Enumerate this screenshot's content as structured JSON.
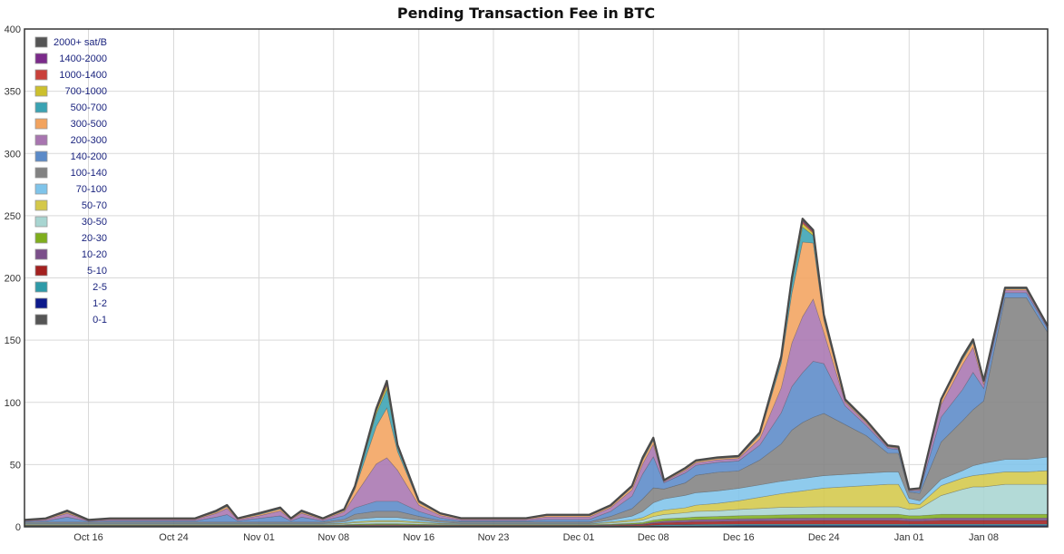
{
  "chart_data": {
    "type": "area",
    "title": "Pending Transaction Fee in BTC",
    "xlabel": "",
    "ylabel": "",
    "ylim": [
      0,
      400
    ],
    "y_ticks": [
      "0",
      "50",
      "100",
      "150",
      "200",
      "250",
      "300",
      "350",
      "400"
    ],
    "x_ticks": [
      "Oct 16",
      "Oct 24",
      "Nov 01",
      "Nov 08",
      "Nov 16",
      "Nov 23",
      "Dec 01",
      "Dec 08",
      "Dec 16",
      "Dec 24",
      "Jan 01",
      "Jan 08"
    ],
    "x_range": [
      "Oct 10",
      "Jan 14"
    ],
    "grid": true,
    "legend_placement": "top-left",
    "x": [
      "Oct 10",
      "Oct 12",
      "Oct 14",
      "Oct 16",
      "Oct 18",
      "Oct 20",
      "Oct 22",
      "Oct 24",
      "Oct 26",
      "Oct 28",
      "Oct 29",
      "Oct 30",
      "Nov 01",
      "Nov 03",
      "Nov 04",
      "Nov 05",
      "Nov 07",
      "Nov 09",
      "Nov 10",
      "Nov 12",
      "Nov 13",
      "Nov 14",
      "Nov 16",
      "Nov 18",
      "Nov 20",
      "Nov 23",
      "Nov 26",
      "Nov 28",
      "Nov 29",
      "Dec 01",
      "Dec 02",
      "Dec 04",
      "Dec 06",
      "Dec 07",
      "Dec 08",
      "Dec 09",
      "Dec 11",
      "Dec 12",
      "Dec 14",
      "Dec 16",
      "Dec 18",
      "Dec 20",
      "Dec 21",
      "Dec 22",
      "Dec 23",
      "Dec 24",
      "Dec 26",
      "Dec 28",
      "Dec 30",
      "Dec 31",
      "Jan 01",
      "Jan 02",
      "Jan 04",
      "Jan 06",
      "Jan 07",
      "Jan 08",
      "Jan 10",
      "Jan 12",
      "Jan 14"
    ],
    "series": [
      {
        "name": "0-1",
        "color": "#555555",
        "values": [
          0.3,
          0.3,
          0.3,
          0.3,
          0.3,
          0.3,
          0.3,
          0.3,
          0.3,
          0.3,
          0.3,
          0.3,
          0.3,
          0.3,
          0.3,
          0.3,
          0.3,
          0.3,
          0.3,
          0.3,
          0.3,
          0.3,
          0.3,
          0.3,
          0.3,
          0.3,
          0.3,
          0.3,
          0.3,
          0.3,
          0.3,
          0.3,
          0.3,
          0.3,
          0.3,
          0.3,
          0.3,
          0.3,
          0.3,
          0.3,
          0.3,
          0.3,
          0.3,
          0.3,
          0.3,
          0.3,
          0.3,
          0.3,
          0.3,
          0.3,
          0.3,
          0.3,
          0.3,
          0.3,
          0.3,
          0.3,
          0.3,
          0.3,
          0.3
        ]
      },
      {
        "name": "1-2",
        "color": "#0d1a8c",
        "values": [
          0.2,
          0.2,
          0.2,
          0.2,
          0.2,
          0.2,
          0.2,
          0.2,
          0.2,
          0.2,
          0.2,
          0.2,
          0.2,
          0.2,
          0.2,
          0.2,
          0.2,
          0.2,
          0.2,
          0.2,
          0.2,
          0.2,
          0.2,
          0.2,
          0.2,
          0.2,
          0.2,
          0.2,
          0.2,
          0.2,
          0.2,
          0.2,
          0.2,
          0.2,
          0.4,
          0.5,
          0.6,
          0.6,
          0.7,
          0.8,
          0.8,
          0.8,
          0.8,
          0.8,
          0.8,
          0.8,
          0.8,
          0.8,
          0.8,
          0.8,
          0.8,
          0.8,
          0.8,
          0.8,
          0.8,
          0.8,
          0.8,
          0.8,
          0.8
        ]
      },
      {
        "name": "2-5",
        "color": "#2e9aa8",
        "values": [
          0.3,
          0.3,
          0.3,
          0.3,
          0.3,
          0.3,
          0.3,
          0.3,
          0.3,
          0.3,
          0.3,
          0.3,
          0.3,
          0.3,
          0.3,
          0.3,
          0.3,
          0.3,
          0.3,
          0.3,
          0.3,
          0.3,
          0.3,
          0.3,
          0.3,
          0.3,
          0.3,
          0.3,
          0.3,
          0.3,
          0.3,
          0.3,
          0.3,
          0.3,
          0.6,
          0.8,
          0.9,
          1.0,
          1.0,
          1.0,
          1.0,
          1.0,
          1.0,
          1.0,
          1.0,
          1.0,
          1.0,
          1.0,
          1.0,
          1.0,
          1.0,
          1.0,
          1.0,
          1.0,
          1.0,
          1.0,
          1.0,
          1.0,
          1.0
        ]
      },
      {
        "name": "5-10",
        "color": "#a3201f",
        "values": [
          0.2,
          0.2,
          0.2,
          0.2,
          0.2,
          0.2,
          0.2,
          0.2,
          0.2,
          0.2,
          0.2,
          0.2,
          0.2,
          0.2,
          0.2,
          0.2,
          0.2,
          0.3,
          0.4,
          0.5,
          0.5,
          0.5,
          0.4,
          0.3,
          0.3,
          0.3,
          0.3,
          0.3,
          0.3,
          0.3,
          0.3,
          0.5,
          0.8,
          1.0,
          1.5,
          1.8,
          2.0,
          2.2,
          2.3,
          2.5,
          2.6,
          2.8,
          2.8,
          2.9,
          3.0,
          3.0,
          3.0,
          3.0,
          3.0,
          3.0,
          2.5,
          2.5,
          3.0,
          3.0,
          3.0,
          3.0,
          3.0,
          3.0,
          3.0
        ]
      },
      {
        "name": "10-20",
        "color": "#7b4f8a",
        "values": [
          0.2,
          0.2,
          0.2,
          0.2,
          0.2,
          0.2,
          0.2,
          0.2,
          0.2,
          0.2,
          0.2,
          0.2,
          0.2,
          0.2,
          0.2,
          0.2,
          0.2,
          0.2,
          0.3,
          0.4,
          0.4,
          0.4,
          0.3,
          0.2,
          0.2,
          0.2,
          0.2,
          0.2,
          0.2,
          0.2,
          0.2,
          0.3,
          0.5,
          0.6,
          1.0,
          1.2,
          1.5,
          1.6,
          1.7,
          1.8,
          1.9,
          2.0,
          2.0,
          2.0,
          2.0,
          2.0,
          2.0,
          2.0,
          2.0,
          2.0,
          1.8,
          1.8,
          2.0,
          2.0,
          2.0,
          2.0,
          2.0,
          2.0,
          2.0
        ]
      },
      {
        "name": "20-30",
        "color": "#7fae1c",
        "values": [
          0.3,
          0.3,
          0.3,
          0.3,
          0.3,
          0.3,
          0.3,
          0.3,
          0.3,
          0.3,
          0.3,
          0.3,
          0.3,
          0.3,
          0.3,
          0.3,
          0.3,
          0.4,
          0.6,
          0.8,
          0.8,
          0.8,
          0.6,
          0.4,
          0.3,
          0.3,
          0.3,
          0.3,
          0.3,
          0.3,
          0.3,
          0.5,
          0.8,
          1.0,
          1.5,
          1.8,
          2.0,
          2.2,
          2.3,
          2.5,
          2.6,
          2.7,
          2.8,
          2.8,
          2.9,
          3.0,
          3.0,
          3.0,
          3.0,
          3.0,
          2.5,
          2.5,
          3.0,
          3.0,
          3.0,
          3.0,
          3.0,
          3.0,
          3.0
        ]
      },
      {
        "name": "30-50",
        "color": "#a8d5d1",
        "values": [
          0.5,
          0.5,
          0.5,
          0.5,
          0.5,
          0.5,
          0.5,
          0.5,
          0.5,
          0.5,
          0.5,
          0.5,
          0.5,
          0.5,
          0.5,
          0.5,
          0.5,
          0.8,
          1.2,
          1.5,
          1.5,
          1.5,
          1.0,
          0.6,
          0.5,
          0.5,
          0.5,
          0.5,
          0.5,
          0.5,
          0.5,
          1.0,
          1.5,
          2.0,
          3.0,
          3.5,
          4.0,
          4.5,
          4.5,
          5.0,
          5.5,
          6.0,
          6.0,
          6.0,
          6.0,
          6.0,
          6.0,
          6.0,
          6.0,
          6.0,
          5.0,
          6.0,
          15.0,
          20.0,
          22.0,
          22.0,
          24.0,
          24.0,
          24.0
        ]
      },
      {
        "name": "50-70",
        "color": "#d4c84a",
        "values": [
          0.3,
          0.3,
          0.3,
          0.3,
          0.3,
          0.3,
          0.3,
          0.3,
          0.3,
          0.3,
          0.3,
          0.3,
          0.3,
          0.3,
          0.3,
          0.3,
          0.3,
          0.5,
          0.8,
          1.0,
          1.0,
          1.0,
          0.8,
          0.5,
          0.3,
          0.3,
          0.3,
          0.3,
          0.3,
          0.3,
          0.3,
          0.8,
          1.2,
          2.0,
          3.0,
          3.5,
          4.0,
          5.0,
          6.0,
          7.0,
          9.0,
          11.0,
          12.0,
          13.0,
          14.0,
          15.0,
          16.0,
          17.0,
          18.0,
          18.0,
          5.0,
          3.0,
          8.0,
          9.0,
          9.0,
          10.0,
          10.0,
          10.0,
          11.0
        ]
      },
      {
        "name": "70-100",
        "color": "#7fc4ea",
        "values": [
          0.5,
          0.5,
          0.5,
          0.5,
          0.5,
          0.5,
          0.5,
          0.5,
          0.5,
          0.5,
          0.5,
          0.5,
          0.5,
          0.5,
          0.5,
          0.5,
          0.5,
          1.0,
          2.0,
          2.5,
          2.5,
          2.5,
          1.5,
          0.8,
          0.5,
          0.5,
          0.5,
          0.5,
          0.5,
          0.5,
          0.5,
          1.5,
          3.0,
          5.0,
          8.0,
          9.0,
          10.0,
          10.0,
          10.0,
          10.0,
          10.0,
          10.0,
          10.0,
          10.0,
          10.0,
          10.0,
          10.0,
          10.0,
          10.0,
          10.0,
          4.0,
          3.0,
          5.0,
          6.0,
          8.0,
          9.0,
          10.0,
          10.0,
          11.0
        ]
      },
      {
        "name": "100-140",
        "color": "#828282",
        "values": [
          1.0,
          1.0,
          1.0,
          1.0,
          1.0,
          1.0,
          1.0,
          1.0,
          1.0,
          1.0,
          1.0,
          1.0,
          1.0,
          1.0,
          1.0,
          1.0,
          1.0,
          2.0,
          4.0,
          5.0,
          5.0,
          5.0,
          3.0,
          1.5,
          1.0,
          1.0,
          1.0,
          1.0,
          1.0,
          1.0,
          1.0,
          3.0,
          6.0,
          10.0,
          12.0,
          8.0,
          10.0,
          14.0,
          15.0,
          14.0,
          20.0,
          30.0,
          40.0,
          45.0,
          48.0,
          50.0,
          40.0,
          30.0,
          15.0,
          15.0,
          5.0,
          6.0,
          30.0,
          40.0,
          45.0,
          50.0,
          130.0,
          130.0,
          100.0
        ]
      },
      {
        "name": "140-200",
        "color": "#5b8ac8",
        "values": [
          0.6,
          1.0,
          4.0,
          0.6,
          1.0,
          1.0,
          1.0,
          1.0,
          1.0,
          4.0,
          6.0,
          1.0,
          3.0,
          5.0,
          1.0,
          4.0,
          1.0,
          3.0,
          5.0,
          8.0,
          8.0,
          8.0,
          4.0,
          2.0,
          1.0,
          1.0,
          1.0,
          2.0,
          2.0,
          2.0,
          2.0,
          4.0,
          10.0,
          20.0,
          25.0,
          5.0,
          8.0,
          8.0,
          8.0,
          8.0,
          12.0,
          25.0,
          35.0,
          40.0,
          45.0,
          40.0,
          15.0,
          8.0,
          4.0,
          3.0,
          1.0,
          2.0,
          20.0,
          25.0,
          30.0,
          10.0,
          4.0,
          4.0,
          3.0
        ]
      },
      {
        "name": "200-300",
        "color": "#a875b0",
        "values": [
          0.5,
          1.0,
          3.0,
          0.5,
          1.0,
          1.0,
          1.0,
          1.0,
          1.0,
          3.0,
          5.0,
          1.0,
          2.0,
          4.0,
          1.0,
          3.0,
          1.0,
          3.0,
          10.0,
          30.0,
          35.0,
          25.0,
          5.0,
          2.0,
          1.0,
          1.0,
          1.0,
          2.0,
          2.0,
          2.0,
          2.0,
          3.0,
          5.0,
          8.0,
          10.0,
          1.0,
          2.0,
          2.0,
          2.0,
          2.0,
          5.0,
          20.0,
          35.0,
          45.0,
          50.0,
          25.0,
          3.0,
          2.0,
          1.0,
          1.0,
          0.5,
          1.0,
          10.0,
          20.0,
          20.0,
          3.0,
          2.0,
          2.0,
          1.0
        ]
      },
      {
        "name": "300-500",
        "color": "#f2a35e",
        "values": [
          0.2,
          0.5,
          1.0,
          0.2,
          0.5,
          0.5,
          0.5,
          0.5,
          0.5,
          1.0,
          1.5,
          0.5,
          1.0,
          1.5,
          0.5,
          1.0,
          0.5,
          1.0,
          5.0,
          30.0,
          40.0,
          15.0,
          2.0,
          1.0,
          0.5,
          0.5,
          0.5,
          1.0,
          1.0,
          1.0,
          1.0,
          1.0,
          2.0,
          3.0,
          3.0,
          0.5,
          1.0,
          1.0,
          1.0,
          1.0,
          3.0,
          20.0,
          40.0,
          60.0,
          45.0,
          10.0,
          1.0,
          1.0,
          0.5,
          0.5,
          0.3,
          0.5,
          3.0,
          4.0,
          4.0,
          2.0,
          1.0,
          1.0,
          0.5
        ]
      },
      {
        "name": "500-700",
        "color": "#3aa3b3",
        "values": [
          0.1,
          0.1,
          0.5,
          0.1,
          0.1,
          0.1,
          0.1,
          0.1,
          0.1,
          0.5,
          0.5,
          0.1,
          0.5,
          0.5,
          0.1,
          0.5,
          0.1,
          0.5,
          1.0,
          10.0,
          15.0,
          3.0,
          0.5,
          0.3,
          0.1,
          0.1,
          0.1,
          0.3,
          0.3,
          0.3,
          0.3,
          0.3,
          0.5,
          1.0,
          1.0,
          0.2,
          0.3,
          0.3,
          0.3,
          0.3,
          1.0,
          3.0,
          8.0,
          12.0,
          6.0,
          2.0,
          0.5,
          0.5,
          0.3,
          0.3,
          0.1,
          0.2,
          0.5,
          1.0,
          1.0,
          0.5,
          0.3,
          0.3,
          0.2
        ]
      },
      {
        "name": "700-1000",
        "color": "#ccc02d",
        "values": [
          0.1,
          0.1,
          0.2,
          0.1,
          0.1,
          0.1,
          0.1,
          0.1,
          0.1,
          0.2,
          0.2,
          0.1,
          0.2,
          0.2,
          0.1,
          0.2,
          0.1,
          0.2,
          0.5,
          2.0,
          3.0,
          1.0,
          0.3,
          0.2,
          0.1,
          0.1,
          0.1,
          0.2,
          0.2,
          0.2,
          0.2,
          0.2,
          0.3,
          0.5,
          0.5,
          0.1,
          0.2,
          0.2,
          0.2,
          0.2,
          0.5,
          1.0,
          2.0,
          3.0,
          2.0,
          1.0,
          0.3,
          0.3,
          0.2,
          0.2,
          0.1,
          0.1,
          0.3,
          0.5,
          0.5,
          0.3,
          0.2,
          0.2,
          0.2
        ]
      },
      {
        "name": "1000-1400",
        "color": "#c9403a",
        "values": [
          0.1,
          0.1,
          0.2,
          0.1,
          0.1,
          0.1,
          0.1,
          0.1,
          0.1,
          0.2,
          0.2,
          0.1,
          0.2,
          0.2,
          0.1,
          0.2,
          0.1,
          0.2,
          0.3,
          1.0,
          1.5,
          0.5,
          0.2,
          0.1,
          0.1,
          0.1,
          0.1,
          0.1,
          0.1,
          0.1,
          0.1,
          0.2,
          0.2,
          0.3,
          0.3,
          0.1,
          0.2,
          0.2,
          0.2,
          0.2,
          0.3,
          0.5,
          1.0,
          1.5,
          1.0,
          0.5,
          0.2,
          0.2,
          0.1,
          0.1,
          0.1,
          0.1,
          0.2,
          0.3,
          0.3,
          0.2,
          0.2,
          0.2,
          0.2
        ]
      },
      {
        "name": "1400-2000",
        "color": "#7b2a8a",
        "values": [
          0.1,
          0.1,
          0.1,
          0.1,
          0.1,
          0.1,
          0.1,
          0.1,
          0.1,
          0.1,
          0.1,
          0.1,
          0.1,
          0.1,
          0.1,
          0.1,
          0.1,
          0.1,
          0.2,
          0.5,
          0.8,
          0.3,
          0.1,
          0.1,
          0.1,
          0.1,
          0.1,
          0.1,
          0.1,
          0.1,
          0.1,
          0.1,
          0.1,
          0.2,
          0.2,
          0.1,
          0.1,
          0.1,
          0.1,
          0.1,
          0.2,
          0.3,
          0.5,
          0.8,
          0.5,
          0.3,
          0.1,
          0.1,
          0.1,
          0.1,
          0.1,
          0.1,
          0.1,
          0.2,
          0.2,
          0.1,
          0.1,
          0.1,
          0.1
        ]
      },
      {
        "name": "2000+ sat/B",
        "color": "#555555",
        "values": [
          0.1,
          0.1,
          0.2,
          0.1,
          0.1,
          0.1,
          0.1,
          0.1,
          0.1,
          0.2,
          0.2,
          0.1,
          0.2,
          0.2,
          0.1,
          0.2,
          0.1,
          0.2,
          0.5,
          1.0,
          1.5,
          0.5,
          0.2,
          0.1,
          0.1,
          0.1,
          0.1,
          0.1,
          0.1,
          0.1,
          0.1,
          0.2,
          0.2,
          0.3,
          0.3,
          0.1,
          0.2,
          0.2,
          0.2,
          0.2,
          0.3,
          0.5,
          1.0,
          1.5,
          1.0,
          0.5,
          0.2,
          0.2,
          0.1,
          0.1,
          0.1,
          0.1,
          0.3,
          0.5,
          0.5,
          0.3,
          0.3,
          0.3,
          0.2
        ]
      }
    ]
  }
}
